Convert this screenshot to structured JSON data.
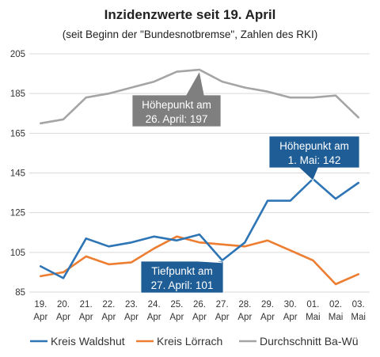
{
  "chart_data": {
    "type": "line",
    "title": "Inzidenzwerte seit 19. April",
    "subtitle": "(seit Beginn der \"Bundesnotbremse\",  Zahlen des RKI)",
    "categories": [
      [
        "19.",
        "Apr"
      ],
      [
        "20.",
        "Apr"
      ],
      [
        "21.",
        "Apr"
      ],
      [
        "22.",
        "Apr"
      ],
      [
        "23.",
        "Apr"
      ],
      [
        "24.",
        "Apr"
      ],
      [
        "25.",
        "Apr"
      ],
      [
        "26.",
        "Apr"
      ],
      [
        "27.",
        "Apr"
      ],
      [
        "28.",
        "Apr"
      ],
      [
        "29.",
        "Apr"
      ],
      [
        "30.",
        "Apr"
      ],
      [
        "01.",
        "Mai"
      ],
      [
        "02.",
        "Mai"
      ],
      [
        "03.",
        "Mai"
      ]
    ],
    "ylim": [
      85,
      205
    ],
    "yticks": [
      85,
      105,
      125,
      145,
      165,
      185,
      205
    ],
    "grid": true,
    "legend_position": "bottom",
    "series": [
      {
        "name": "Kreis Waldshut",
        "color": "#2e75b6",
        "values": [
          98,
          92,
          112,
          108,
          110,
          113,
          111,
          114,
          101,
          110,
          131,
          131,
          142,
          132,
          140
        ]
      },
      {
        "name": "Kreis Lörrach",
        "color": "#ed7d31",
        "values": [
          93,
          95,
          103,
          99,
          100,
          107,
          113,
          110,
          109,
          108,
          111,
          106,
          101,
          89,
          94
        ]
      },
      {
        "name": "Durchschnitt Ba-Wü",
        "color": "#a5a5a5",
        "values": [
          170,
          172,
          183,
          185,
          188,
          191,
          196,
          197,
          191,
          188,
          186,
          183,
          183,
          184,
          173
        ]
      }
    ],
    "annotations": [
      {
        "id": "hoehepunkt-bawue",
        "lines": [
          "Höhepunkt  am",
          "26. April: 197"
        ],
        "color": "#7f7f7f"
      },
      {
        "id": "hoehepunkt-waldshut",
        "lines": [
          "Höhepunkt  am",
          "1. Mai:  142"
        ],
        "color": "#1f5d96"
      },
      {
        "id": "tiefpunkt-waldshut",
        "lines": [
          "Tiefpunkt am",
          "27. April: 101"
        ],
        "color": "#1f5d96"
      }
    ]
  }
}
